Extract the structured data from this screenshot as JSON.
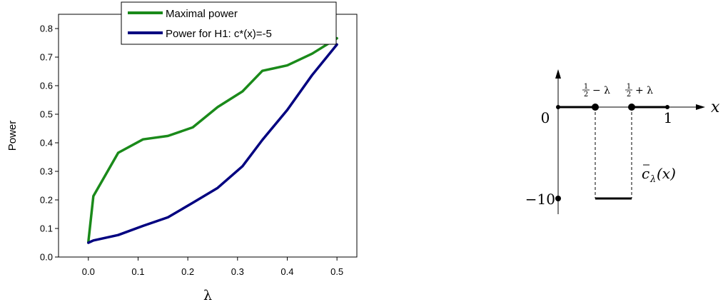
{
  "chart_data": [
    {
      "type": "line",
      "title": "",
      "xlabel": "λ",
      "ylabel": "Power",
      "xlim": [
        -0.06,
        0.54
      ],
      "ylim": [
        0.0,
        0.85
      ],
      "xticks": [
        "0.0",
        "0.1",
        "0.2",
        "0.3",
        "0.4",
        "0.5"
      ],
      "yticks": [
        "0.0",
        "0.1",
        "0.2",
        "0.3",
        "0.4",
        "0.5",
        "0.6",
        "0.7",
        "0.8"
      ],
      "legend_position": "top-right",
      "grid": false,
      "series": [
        {
          "name": "Maximal power",
          "color": "#1a8a1a",
          "x": [
            0.0,
            0.01,
            0.06,
            0.11,
            0.16,
            0.21,
            0.26,
            0.31,
            0.35,
            0.4,
            0.45,
            0.5
          ],
          "y": [
            0.053,
            0.213,
            0.365,
            0.412,
            0.424,
            0.454,
            0.525,
            0.58,
            0.652,
            0.671,
            0.712,
            0.766
          ]
        },
        {
          "name": "Power for H1: c*(x)=-5",
          "color": "#000080",
          "x": [
            0.0,
            0.01,
            0.06,
            0.11,
            0.16,
            0.21,
            0.26,
            0.31,
            0.35,
            0.4,
            0.45,
            0.5
          ],
          "y": [
            0.05,
            0.058,
            0.077,
            0.109,
            0.139,
            0.19,
            0.242,
            0.318,
            0.41,
            0.515,
            0.637,
            0.744
          ]
        }
      ]
    }
  ],
  "diagram": {
    "x_axis_label": "x",
    "origin_label": "0",
    "one_label": "1",
    "minus_ten_label": "−10",
    "left_break_rest": "− λ",
    "right_break_rest": "+ λ",
    "half_numerator": "1",
    "half_denominator": "2",
    "function_label_c": "c",
    "function_label_sub": "λ",
    "function_label_arg": "(x)"
  }
}
